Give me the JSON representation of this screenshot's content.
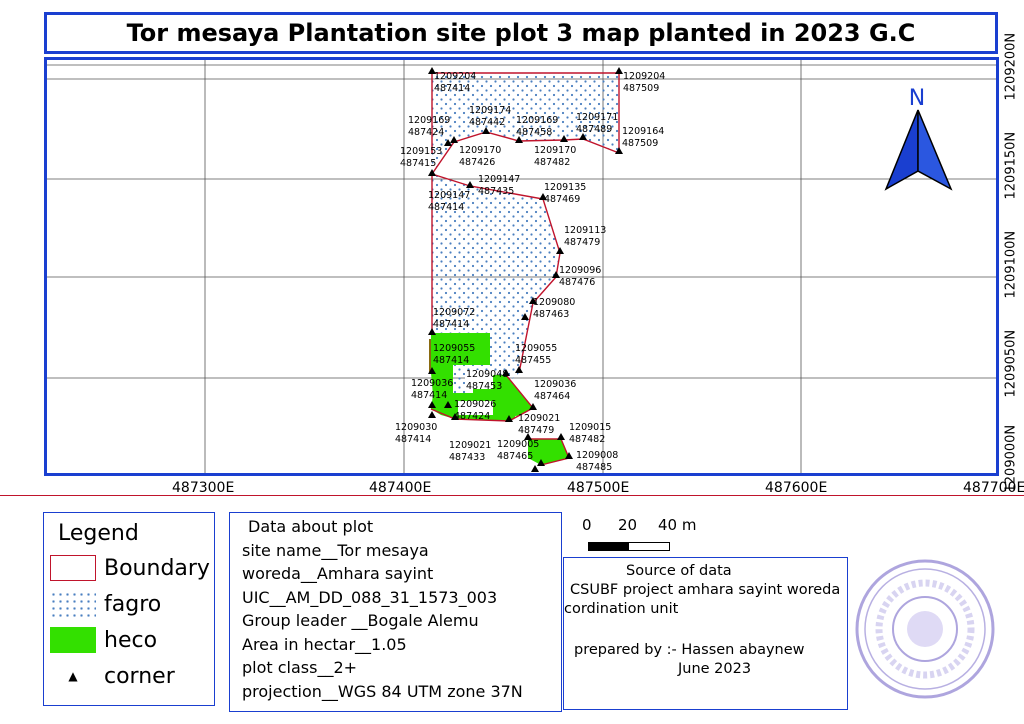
{
  "title": "Tor mesaya Plantation site plot 3 map planted in 2023 G.C",
  "map": {
    "x_ticks": [
      "487300E",
      "487400E",
      "487500E",
      "487600E",
      "487700E"
    ],
    "y_ticks": [
      "1209200N",
      "1209150N",
      "1209100N",
      "1209050N",
      "1209000N"
    ],
    "north_label": "N",
    "corner_labels": [
      {
        "n": "1209204",
        "e": "487414"
      },
      {
        "n": "1209204",
        "e": "487509"
      },
      {
        "n": "1209174",
        "e": "487442"
      },
      {
        "n": "1209169",
        "e": "487424"
      },
      {
        "n": "1209169",
        "e": "487458"
      },
      {
        "n": "1209171",
        "e": "487489"
      },
      {
        "n": "1209164",
        "e": "487509"
      },
      {
        "n": "1209153",
        "e": "487415"
      },
      {
        "n": "1209170",
        "e": "487426"
      },
      {
        "n": "1209170",
        "e": "487482"
      },
      {
        "n": "1209147",
        "e": "487435"
      },
      {
        "n": "1209147",
        "e": "487414"
      },
      {
        "n": "1209135",
        "e": "487469"
      },
      {
        "n": "1209113",
        "e": "487479"
      },
      {
        "n": "1209096",
        "e": "487476"
      },
      {
        "n": "1209080",
        "e": "487463"
      },
      {
        "n": "1209072",
        "e": "487414"
      },
      {
        "n": "1209055",
        "e": "487414"
      },
      {
        "n": "1209055",
        "e": "487455"
      },
      {
        "n": "1209048",
        "e": "487453"
      },
      {
        "n": "1209036",
        "e": "487414"
      },
      {
        "n": "1209036",
        "e": "487464"
      },
      {
        "n": "1209026",
        "e": "487424"
      },
      {
        "n": "1209021",
        "e": "487479"
      },
      {
        "n": "1209030",
        "e": "487414"
      },
      {
        "n": "1209015",
        "e": "487482"
      },
      {
        "n": "1209021",
        "e": "487433"
      },
      {
        "n": "1209005",
        "e": "487465"
      },
      {
        "n": "1209008",
        "e": "487485"
      }
    ]
  },
  "legend": {
    "title": "Legend",
    "items": [
      {
        "label": "Boundary",
        "kind": "boundary",
        "color": "#c0142c"
      },
      {
        "label": "fagro",
        "kind": "fagro",
        "color": "#4a7fc0"
      },
      {
        "label": "heco",
        "kind": "heco",
        "color": "#33e000"
      },
      {
        "label": "corner",
        "kind": "corner",
        "color": "#000000"
      }
    ]
  },
  "plot_info": {
    "heading": "Data about plot",
    "lines": [
      "site name__Tor mesaya",
      "woreda__Amhara sayint",
      "UIC__AM_DD_088_31_1573_003",
      "Group leader __Bogale Alemu",
      "Area in hectar__1.05",
      "plot class__2+",
      "projection__WGS 84 UTM zone 37N"
    ]
  },
  "scale": {
    "labels": [
      "0",
      "20",
      "40 m"
    ]
  },
  "source": {
    "heading": "Source of data",
    "line1": "CSUBF project amhara sayint woreda",
    "line2": "cordination unit",
    "prepared": "prepared by :- Hassen abaynew",
    "date": "June 2023"
  },
  "colors": {
    "frame": "#1a3fd0",
    "boundary": "#c0142c",
    "heco": "#33e000",
    "fagro_dot": "#4a7fc0"
  }
}
